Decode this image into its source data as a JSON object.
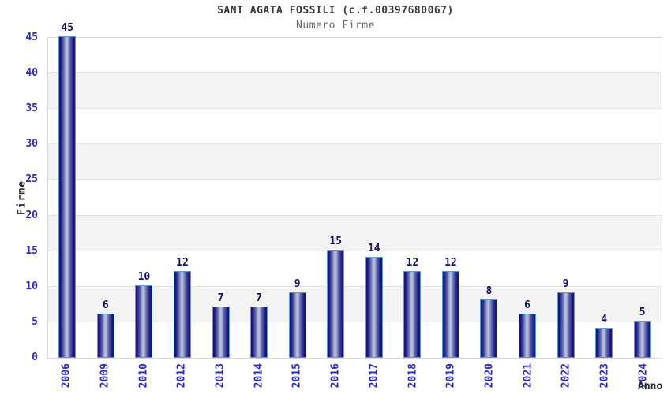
{
  "chart_data": {
    "type": "bar",
    "title": "SANT AGATA FOSSILI (c.f.00397680067)",
    "subtitle": "Numero Firme",
    "xlabel": "Anno",
    "ylabel": "Firme",
    "categories": [
      "2006",
      "2009",
      "2010",
      "2012",
      "2013",
      "2014",
      "2015",
      "2016",
      "2017",
      "2018",
      "2019",
      "2020",
      "2021",
      "2022",
      "2023",
      "2024"
    ],
    "values": [
      45,
      6,
      10,
      12,
      7,
      7,
      9,
      15,
      14,
      12,
      12,
      8,
      6,
      9,
      4,
      5
    ],
    "ylim": [
      0,
      45
    ],
    "ytick_step": 5,
    "yticks": [
      0,
      5,
      10,
      15,
      20,
      25,
      30,
      35,
      40,
      45
    ],
    "grid": true,
    "legend_position": "none",
    "colors": {
      "bar_dark": "#17177b",
      "bar_mid": "#555da9",
      "bar_light": "#b6bcdc",
      "bar_border": "#5b9bd8",
      "axis_tick_label": "#2a2acc",
      "value_label": "#13136b",
      "title_text": "#3a3a3a",
      "subtitle_text": "#686868",
      "axis_name_text": "#2b2b2b",
      "band_gray": "#f3f3f3",
      "band_white": "#ffffff",
      "gridline": "#e2e2e2",
      "plot_border": "#d6d6d6"
    }
  }
}
